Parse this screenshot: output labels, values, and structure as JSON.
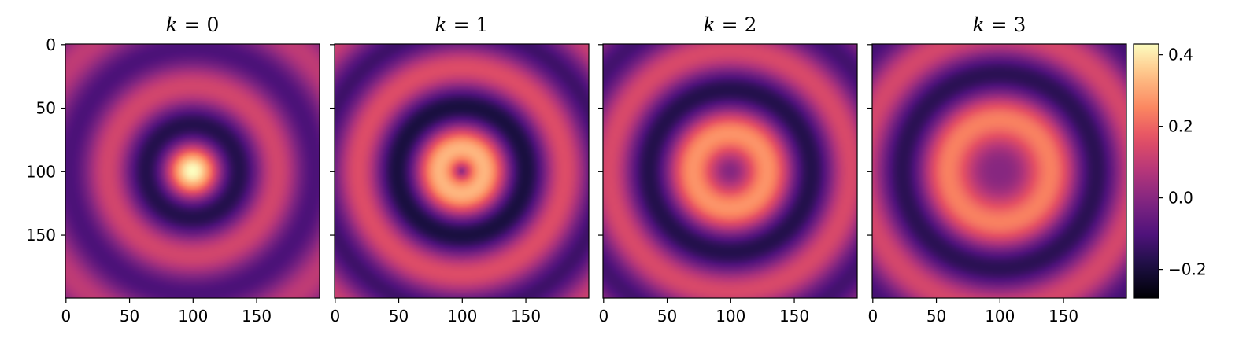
{
  "chart_data": [
    {
      "type": "heatmap",
      "title": "k = 0",
      "title_var": "k",
      "title_val": "0",
      "k": 0,
      "grid_size": 200,
      "center": [
        100,
        100
      ],
      "xticks": [
        "0",
        "50",
        "100",
        "150"
      ],
      "yticks": [
        "0",
        "50",
        "100",
        "150"
      ],
      "xlim": [
        0,
        199
      ],
      "ylim": [
        0,
        199
      ],
      "origin": "upper",
      "colormap": "magma"
    },
    {
      "type": "heatmap",
      "title": "k = 1",
      "title_var": "k",
      "title_val": "1",
      "k": 1,
      "grid_size": 200,
      "center": [
        100,
        100
      ],
      "xticks": [
        "0",
        "50",
        "100",
        "150"
      ],
      "yticks": [],
      "xlim": [
        0,
        199
      ],
      "ylim": [
        0,
        199
      ],
      "origin": "upper",
      "colormap": "magma"
    },
    {
      "type": "heatmap",
      "title": "k = 2",
      "title_var": "k",
      "title_val": "2",
      "k": 2,
      "grid_size": 200,
      "center": [
        100,
        100
      ],
      "xticks": [
        "0",
        "50",
        "100",
        "150"
      ],
      "yticks": [],
      "xlim": [
        0,
        199
      ],
      "ylim": [
        0,
        199
      ],
      "origin": "upper",
      "colormap": "magma"
    },
    {
      "type": "heatmap",
      "title": "k = 3",
      "title_var": "k",
      "title_val": "3",
      "k": 3,
      "grid_size": 200,
      "center": [
        100,
        100
      ],
      "xticks": [
        "0",
        "50",
        "100",
        "150"
      ],
      "yticks": [],
      "xlim": [
        0,
        199
      ],
      "ylim": [
        0,
        199
      ],
      "origin": "upper",
      "colormap": "magma"
    }
  ],
  "colorbar": {
    "min": -0.28,
    "max": 0.43,
    "ticks": [
      {
        "value": 0.4,
        "label": "0.4"
      },
      {
        "value": 0.2,
        "label": "0.2"
      },
      {
        "value": 0.0,
        "label": "0.0"
      },
      {
        "value": -0.2,
        "label": "−0.2"
      }
    ],
    "colormap": "magma"
  }
}
